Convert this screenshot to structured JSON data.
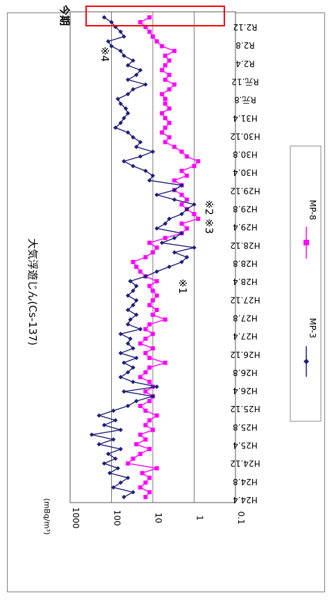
{
  "chart_data": {
    "type": "line",
    "title": "大気浮遊じん(Cs-137)",
    "ylabel": "(mBq/m³)",
    "yscale": "log",
    "ylim": [
      0.1,
      1000
    ],
    "y_ticks": [
      "1000",
      "100",
      "10",
      "1",
      "0.1"
    ],
    "x_tick_labels": [
      "H24.4",
      "H24.8",
      "H24.12",
      "H25.4",
      "H25.8",
      "H25.12",
      "H26.4",
      "H26.8",
      "H26.12",
      "H27.4",
      "H27.8",
      "H27.12",
      "H28.4",
      "H28.8",
      "H28.12",
      "H29.4",
      "H29.8",
      "H29.12",
      "H30.4",
      "H30.8",
      "H30.12",
      "H31.4",
      "R元.8",
      "R元.12",
      "R2.4",
      "R2.8",
      "R2.12"
    ],
    "grid": "horizontal",
    "legend_position": "bottom",
    "series": [
      {
        "name": "MP-3",
        "color": "#1f1f7a",
        "marker": "diamond",
        "values": [
          50,
          30,
          90,
          60,
          40,
          110,
          70,
          150,
          80,
          120,
          60,
          200,
          90,
          300,
          60,
          150,
          80,
          200,
          90,
          40,
          25,
          10,
          50,
          8,
          30,
          60,
          40,
          30,
          50,
          25,
          60,
          30,
          40,
          35,
          60,
          20,
          40,
          35,
          25,
          40,
          30,
          25,
          40,
          30,
          25,
          35,
          15,
          8,
          4,
          2,
          1.5,
          3,
          1,
          6,
          3,
          2,
          8,
          5,
          4,
          2,
          1.5,
          1,
          3,
          8,
          3,
          2,
          12,
          10,
          15,
          30,
          50,
          20,
          10,
          25,
          20,
          30,
          40,
          80,
          60,
          50,
          40,
          45,
          60,
          70,
          40,
          30,
          15,
          40,
          25,
          20,
          40,
          30,
          50,
          60,
          100,
          120,
          50,
          60,
          80,
          100,
          150
        ]
      },
      {
        "name": "MP-8",
        "color": "#ff00ff",
        "marker": "square",
        "values": [
          15,
          12,
          20,
          15,
          12,
          18,
          8,
          40,
          30,
          20,
          12,
          25,
          15,
          20,
          10,
          15,
          12,
          8,
          15,
          20,
          12,
          10,
          15,
          10,
          12,
          20,
          15,
          12,
          5,
          12,
          15,
          10,
          20,
          15,
          10,
          15,
          12,
          5,
          10,
          8,
          12,
          10,
          8,
          10,
          12,
          8,
          15,
          20,
          25,
          30,
          15,
          10,
          8,
          12,
          5,
          2,
          1.5,
          2,
          0.8,
          1,
          1.5,
          2,
          1.5,
          2,
          3,
          2,
          3,
          1.5,
          2,
          1,
          0.8,
          1.5,
          2,
          3,
          5,
          4,
          6,
          5,
          4,
          5,
          6,
          4,
          5,
          5,
          6,
          4,
          3,
          5,
          4,
          6,
          5,
          4,
          5,
          3,
          6,
          8,
          10,
          12,
          15,
          20,
          12
        ]
      }
    ],
    "annotations": [
      "※1",
      "※2 ※3",
      "※4"
    ],
    "highlight_label": "今期"
  }
}
